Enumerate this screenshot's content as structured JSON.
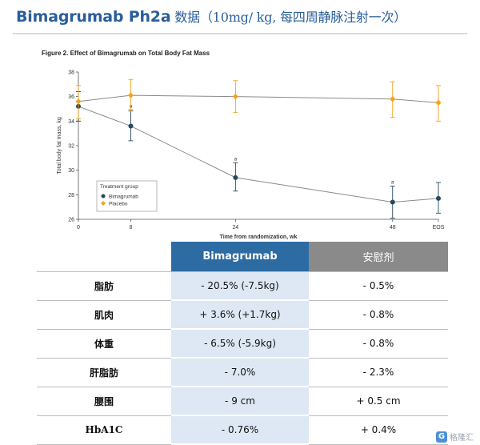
{
  "header": {
    "title_main": "Bimagrumab Ph2a",
    "title_detail": " 数据（10mg/ kg, 每四周静脉注射一次）"
  },
  "figure_caption": "Figure 2. Effect of Bimagrumab on Total Body Fat Mass",
  "chart_data": {
    "type": "line",
    "x_labels": [
      "0",
      "8",
      "24",
      "48",
      "EOS"
    ],
    "x_positions": [
      0,
      8,
      24,
      48,
      55
    ],
    "xlabel": "Time from randomization, wk",
    "ylabel": "Total body fat mass, kg",
    "ylim": [
      26,
      38
    ],
    "y_ticks": [
      26,
      28,
      30,
      32,
      34,
      36,
      38
    ],
    "grid": false,
    "legend_title": "Treatment group",
    "legend_position": "lower-left",
    "series": [
      {
        "name": "Bimagrumab",
        "color": "#234a5e",
        "marker": "circle",
        "values": [
          35.2,
          33.6,
          29.4,
          27.4,
          27.7
        ],
        "error_low": [
          34.0,
          32.4,
          28.3,
          26.1,
          26.5
        ],
        "error_high": [
          36.4,
          34.9,
          30.6,
          28.7,
          29.0
        ],
        "annotations": [
          "",
          "a",
          "a",
          "a",
          ""
        ]
      },
      {
        "name": "Placebo",
        "color": "#f4a11c",
        "marker": "diamond",
        "values": [
          35.6,
          36.1,
          36.0,
          35.8,
          35.5
        ],
        "error_low": [
          34.2,
          34.8,
          34.7,
          34.3,
          34.0
        ],
        "error_high": [
          36.9,
          37.4,
          37.3,
          37.2,
          36.9
        ],
        "annotations": [
          "",
          "",
          "",
          "",
          ""
        ]
      }
    ]
  },
  "table": {
    "headers": [
      "",
      "Bimagrumab",
      "安慰剂"
    ],
    "rows": [
      {
        "metric": "脂肪",
        "drug": "- 20.5% (-7.5kg)",
        "placebo": "- 0.5%"
      },
      {
        "metric": "肌肉",
        "drug": "+ 3.6% (+1.7kg)",
        "placebo": "- 0.8%"
      },
      {
        "metric": "体重",
        "drug": "- 6.5% (-5.9kg)",
        "placebo": "- 0.8%"
      },
      {
        "metric": "肝脂肪",
        "drug": "- 7.0%",
        "placebo": "- 2.3%"
      },
      {
        "metric": "腰围",
        "drug": "- 9 cm",
        "placebo": "+ 0.5 cm"
      },
      {
        "metric": "HbA1C",
        "drug": "- 0.76%",
        "placebo": "+ 0.4%"
      }
    ]
  },
  "watermark": {
    "logo": "G",
    "text": "格隆汇"
  }
}
